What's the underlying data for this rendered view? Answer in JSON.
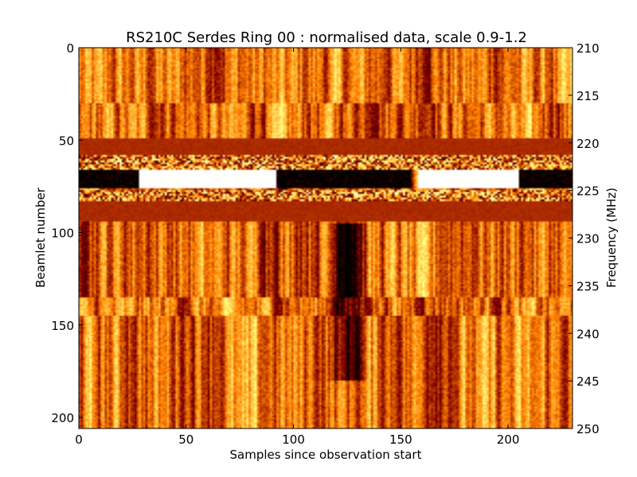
{
  "chart_data": {
    "type": "heatmap",
    "title": "RS210C Serdes Ring 00 : normalised data, scale 0.9-1.2",
    "xlabel": "Samples since observation start",
    "ylabel": "Beamlet number",
    "ylabel_right": "Frequency (MHz)",
    "xlim": [
      0,
      230
    ],
    "ylim": [
      0,
      206
    ],
    "ylim_right": [
      210,
      250
    ],
    "xticks": [
      "0",
      "50",
      "100",
      "150",
      "200"
    ],
    "yticks": [
      "0",
      "50",
      "100",
      "150",
      "200"
    ],
    "yticks_right": [
      "210",
      "215",
      "220",
      "225",
      "230",
      "235",
      "240",
      "245",
      "250"
    ],
    "colormap": "afmhot",
    "value_range": [
      0.9,
      1.2
    ],
    "flagged_bands": [
      [
        49,
        58
      ],
      [
        83,
        94
      ]
    ],
    "flagged_value": 1.0,
    "feature_band": {
      "rows": [
        66,
        76
      ],
      "segments": [
        {
          "x": [
            0,
            28
          ],
          "level": "low"
        },
        {
          "x": [
            28,
            92
          ],
          "level": "high"
        },
        {
          "x": [
            92,
            155
          ],
          "level": "low"
        },
        {
          "x": [
            158,
            205
          ],
          "level": "high"
        },
        {
          "x": [
            205,
            230
          ],
          "level": "low"
        }
      ]
    },
    "low_region": {
      "x": [
        115,
        135
      ],
      "rows": [
        95,
        180
      ]
    }
  }
}
